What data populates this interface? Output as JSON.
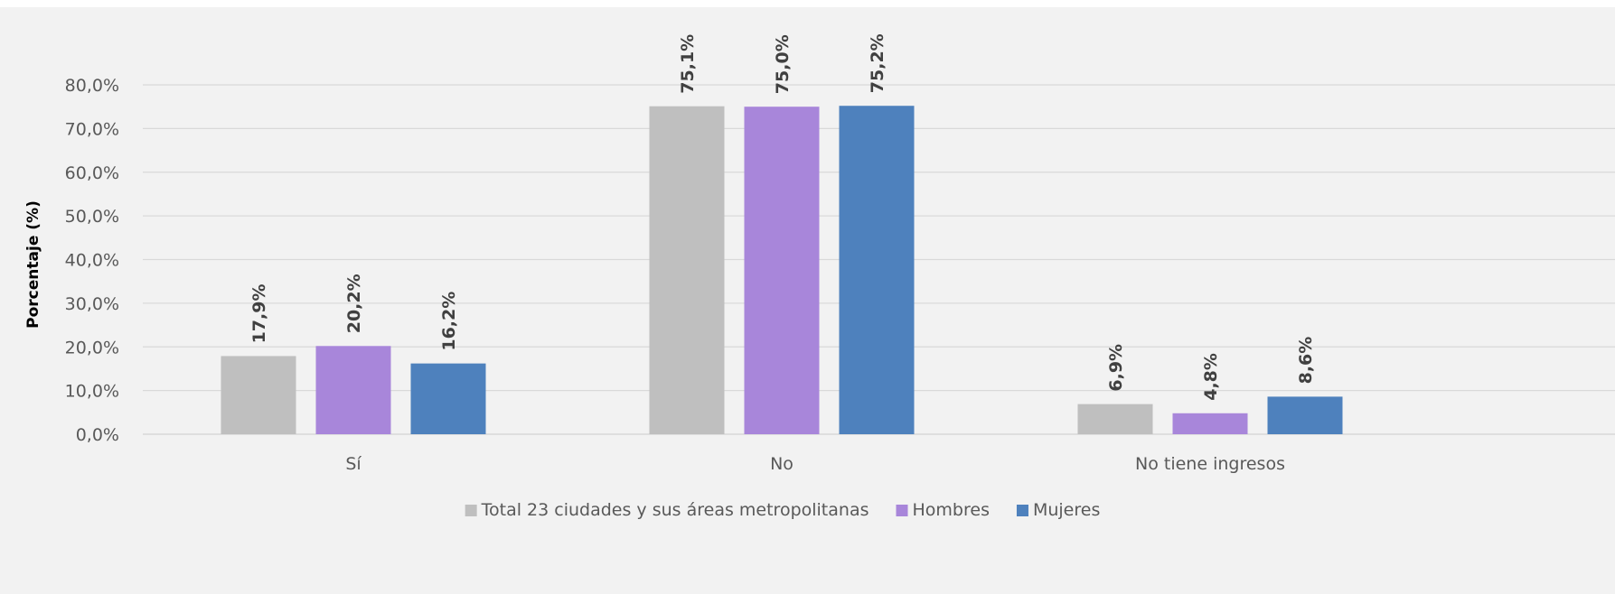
{
  "chart_data": {
    "type": "bar",
    "categories": [
      "Sí",
      "No",
      "No tiene ingresos"
    ],
    "series": [
      {
        "name": "Total 23 ciudades y sus áreas metropolitanas",
        "color": "#bfbfbf",
        "values": [
          17.9,
          75.1,
          6.9
        ],
        "labels": [
          "17,9%",
          "75,1%",
          "6,9%"
        ]
      },
      {
        "name": "Hombres",
        "color": "#a886da",
        "values": [
          20.2,
          75.0,
          4.8
        ],
        "labels": [
          "20,2%",
          "75,0%",
          "4,8%"
        ]
      },
      {
        "name": "Mujeres",
        "color": "#4e81bd",
        "values": [
          16.2,
          75.2,
          8.6
        ],
        "labels": [
          "16,2%",
          "75,2%",
          "8,6%"
        ]
      }
    ],
    "ylabel": "Porcentaje (%)",
    "xlabel": "",
    "ylim": [
      0,
      80
    ],
    "yticks": [
      0,
      10,
      20,
      30,
      40,
      50,
      60,
      70,
      80
    ],
    "ytick_labels": [
      "0,0%",
      "10,0%",
      "20,0%",
      "30,0%",
      "40,0%",
      "50,0%",
      "60,0%",
      "70,0%",
      "80,0%"
    ],
    "grid": true,
    "legend_position": "bottom",
    "background_color": "#f2f2f2",
    "gridline_color": "#d9d9d9"
  }
}
